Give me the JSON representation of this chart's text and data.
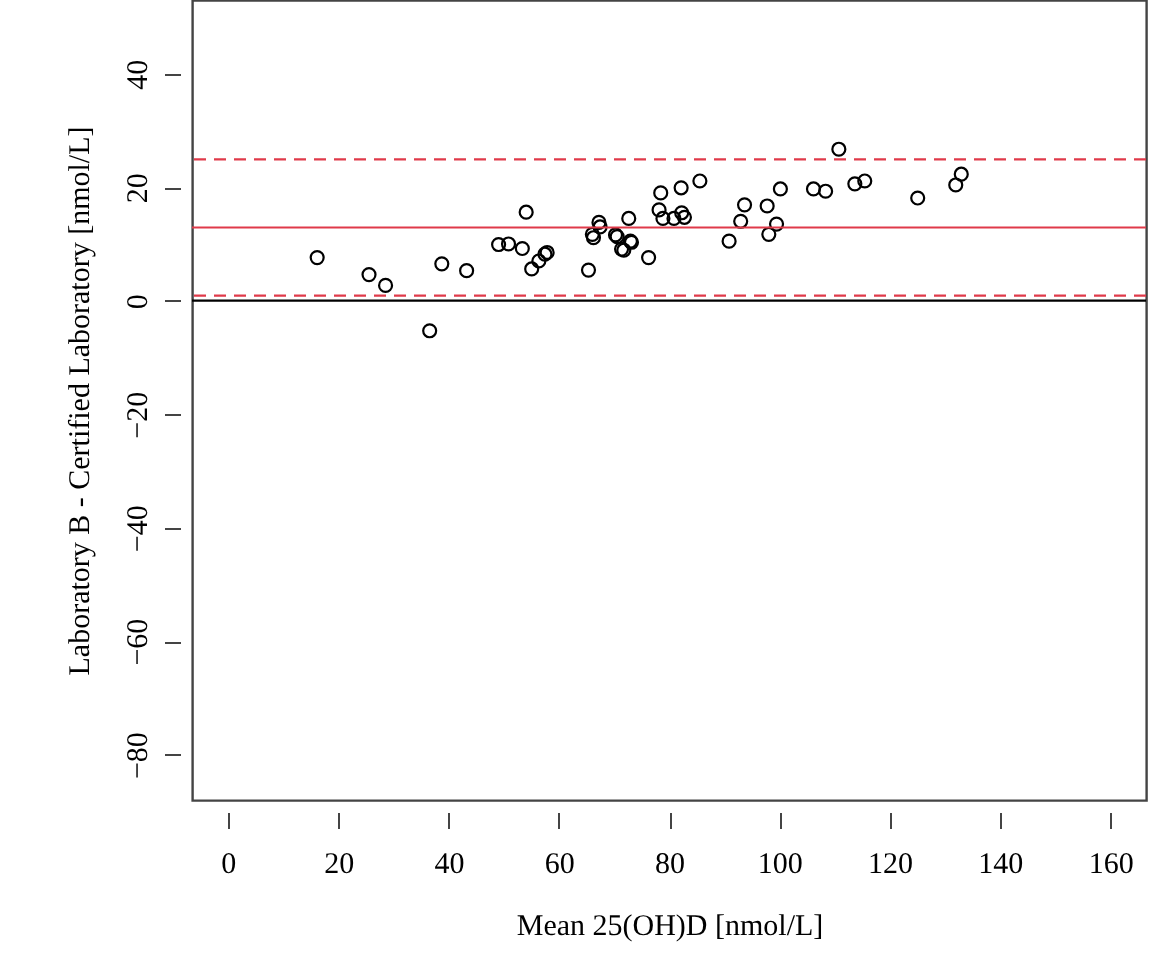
{
  "chart_data": {
    "type": "scatter",
    "xlabel": "Mean 25(OH)D [nmol/L]",
    "ylabel": "Laboratory B - Certified Laboratory [nmol/L]",
    "xlim": [
      -6.5,
      166.5
    ],
    "ylim": [
      -88,
      53
    ],
    "xticks": [
      0,
      20,
      40,
      60,
      80,
      100,
      120,
      140,
      160
    ],
    "yticks": [
      -80,
      -60,
      -40,
      -20,
      0,
      20,
      40
    ],
    "grid": false,
    "marker": "circle",
    "series": [
      {
        "color": "#000000",
        "x": [
          16.2,
          25.6,
          28.6,
          36.6,
          38.8,
          43.3,
          49.1,
          50.9,
          53.4,
          54.1,
          55.1,
          56.4,
          57.5,
          57.9,
          65.4,
          66.1,
          66.3,
          67.3,
          67.5,
          70.3,
          70.6,
          71.4,
          71.8,
          72.7,
          73.0,
          73.2,
          76.3,
          78.5,
          78.2,
          78.9,
          80.9,
          82.2,
          82.3,
          82.8,
          85.6,
          90.9,
          93.0,
          93.7,
          97.8,
          98.1,
          99.5,
          100.2,
          106.2,
          108.4,
          110.8,
          113.7,
          115.5,
          125.1,
          132.0,
          133.0
        ],
        "values": [
          7.6,
          4.6,
          2.7,
          -5.3,
          6.5,
          5.3,
          9.9,
          10.0,
          9.2,
          15.6,
          5.6,
          7.0,
          8.2,
          8.5,
          5.4,
          11.7,
          11.1,
          13.8,
          13.0,
          11.6,
          11.3,
          9.1,
          8.9,
          14.5,
          10.5,
          10.3,
          7.6,
          19.0,
          16.0,
          14.5,
          14.5,
          19.9,
          15.5,
          14.7,
          21.1,
          10.5,
          14.0,
          16.9,
          16.7,
          11.7,
          13.5,
          19.7,
          19.7,
          19.3,
          26.7,
          20.6,
          21.1,
          18.1,
          20.4,
          22.3
        ]
      }
    ],
    "ref_lines": [
      {
        "axis": "y",
        "value": 0,
        "color": "#000000",
        "line_style": "solid"
      },
      {
        "axis": "y",
        "value": 12.9,
        "color": "#e03a4a",
        "line_style": "solid"
      },
      {
        "axis": "y",
        "value": 24.9,
        "color": "#e03a4a",
        "line_style": "dashed"
      },
      {
        "axis": "y",
        "value": 0.9,
        "color": "#e03a4a",
        "line_style": "dashed"
      }
    ]
  }
}
